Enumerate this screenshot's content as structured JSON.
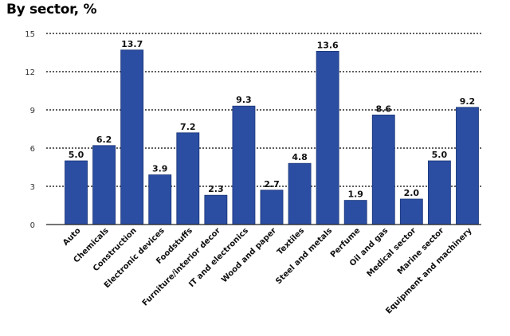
{
  "chart_data": {
    "type": "bar",
    "title": "By sector, %",
    "xlabel": "",
    "ylabel": "",
    "ylim": [
      0,
      15
    ],
    "yticks": [
      0,
      3,
      6,
      9,
      12,
      15
    ],
    "grid": true,
    "categories": [
      "Auto",
      "Chemicals",
      "Construction",
      "Electronic devices",
      "Foodstuffs",
      "Furniture/interior decor",
      "IT and electronics",
      "Wood and paper",
      "Textiles",
      "Steel and metals",
      "Perfume",
      "Oil and gas",
      "Medical sector",
      "Marine sector",
      "Equipment and machinery"
    ],
    "values": [
      5.0,
      6.2,
      13.7,
      3.9,
      7.2,
      2.3,
      9.3,
      2.7,
      4.8,
      13.6,
      1.9,
      8.6,
      2.0,
      5.0,
      9.2
    ],
    "value_labels": [
      "5.0",
      "6.2",
      "13.7",
      "3.9",
      "7.2",
      "2.3",
      "9.3",
      "2.7",
      "4.8",
      "13.6",
      "1.9",
      "8.6",
      "2.0",
      "5.0",
      "9.2"
    ],
    "colors": {
      "bar": "#2b4ea3",
      "bar_edge": "#1a3577",
      "grid": "#000000",
      "axis": "#222222"
    }
  }
}
